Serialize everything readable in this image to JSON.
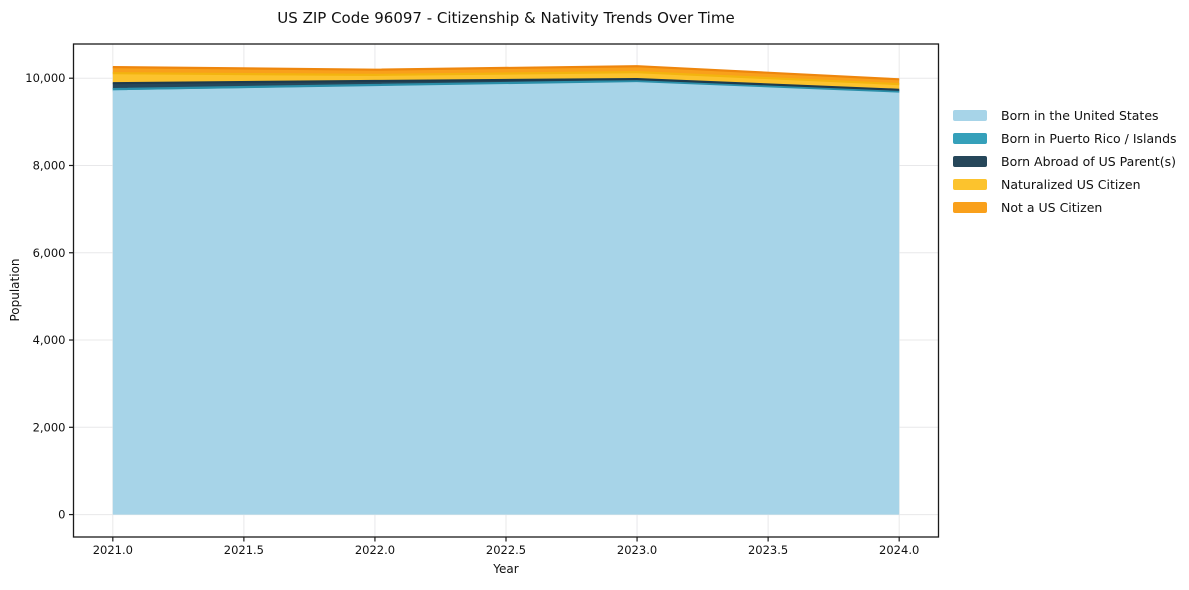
{
  "figure": {
    "background": "#ffffff",
    "text_color": "#111111",
    "axis_color": "#1a1a1a"
  },
  "chart_data": {
    "type": "area",
    "stacked": true,
    "title": "US ZIP Code 96097 - Citizenship & Nativity Trends Over Time",
    "xlabel": "Year",
    "ylabel": "Population",
    "legend_position": "right-outside",
    "grid": true,
    "grid_color": "#e8e8ea",
    "xlim": [
      2020.85,
      2024.15
    ],
    "ylim": [
      -514,
      10784
    ],
    "x": [
      2021,
      2022,
      2023,
      2024
    ],
    "x_ticks": {
      "values": [
        2021.0,
        2021.5,
        2022.0,
        2022.5,
        2023.0,
        2023.5,
        2024.0
      ],
      "labels": [
        "2021.0",
        "2021.5",
        "2022.0",
        "2022.5",
        "2023.0",
        "2023.5",
        "2024.0"
      ]
    },
    "y_ticks": {
      "values": [
        0,
        2000,
        4000,
        6000,
        8000,
        10000
      ],
      "labels": [
        "0",
        "2,000",
        "4,000",
        "6,000",
        "8,000",
        "10,000"
      ]
    },
    "series": [
      {
        "name": "Born in the United States",
        "color": "#a7d4e8",
        "line_color": "#a7d4e8",
        "values": [
          9700,
          9800,
          9905,
          9670
        ]
      },
      {
        "name": "Born in Puerto Rico / Islands",
        "color": "#35a0ba",
        "line_color": "#2b8fa9",
        "values": [
          50,
          45,
          30,
          25
        ]
      },
      {
        "name": "Born Abroad of US Parent(s)",
        "color": "#26475a",
        "line_color": "#1e3a4c",
        "values": [
          135,
          90,
          45,
          40
        ]
      },
      {
        "name": "Naturalized US Citizen",
        "color": "#fcc32d",
        "line_color": "#f3b40f",
        "values": [
          230,
          140,
          160,
          130
        ]
      },
      {
        "name": "Not a US Citizen",
        "color": "#f9a01b",
        "line_color": "#ee860d",
        "values": [
          140,
          120,
          135,
          110
        ]
      }
    ]
  }
}
